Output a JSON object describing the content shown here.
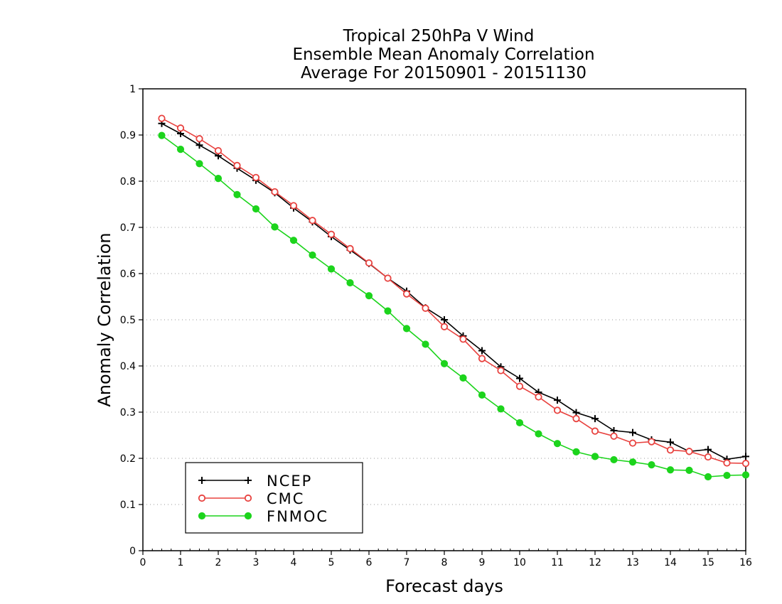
{
  "chart_data": {
    "type": "line",
    "title_lines": [
      "Tropical 250hPa V Wind",
      "Ensemble Mean Anomaly Correlation",
      "Average For 20150901 - 20151130"
    ],
    "xlabel": "Forecast days",
    "ylabel": "Anomaly Correlation",
    "xlim": [
      0,
      16
    ],
    "ylim": [
      0,
      1
    ],
    "x_ticks": [
      "0",
      "1",
      "2",
      "3",
      "4",
      "5",
      "6",
      "7",
      "8",
      "9",
      "10",
      "11",
      "12",
      "13",
      "14",
      "15",
      "16"
    ],
    "y_ticks": [
      "0",
      "0.1",
      "0.2",
      "0.3",
      "0.4",
      "0.5",
      "0.6",
      "0.7",
      "0.8",
      "0.9",
      "1"
    ],
    "grid": "horizontal dotted",
    "legend_position": "bottom-left",
    "x": [
      0.5,
      1,
      1.5,
      2,
      2.5,
      3,
      3.5,
      4,
      4.5,
      5,
      5.5,
      6,
      6.5,
      7,
      7.5,
      8,
      8.5,
      9,
      9.5,
      10,
      10.5,
      11,
      11.5,
      12,
      12.5,
      13,
      13.5,
      14,
      14.5,
      15,
      15.5,
      16
    ],
    "series": [
      {
        "name": "NCEP",
        "color": "#000000",
        "marker": "plus",
        "values": [
          0.925,
          0.903,
          0.878,
          0.855,
          0.828,
          0.802,
          0.775,
          0.742,
          0.712,
          0.68,
          0.651,
          0.622,
          0.59,
          0.562,
          0.526,
          0.5,
          0.465,
          0.433,
          0.398,
          0.373,
          0.343,
          0.326,
          0.299,
          0.286,
          0.26,
          0.256,
          0.24,
          0.235,
          0.215,
          0.219,
          0.198,
          0.204
        ]
      },
      {
        "name": "CMC",
        "color": "#e8423f",
        "marker": "open-circle",
        "values": [
          0.936,
          0.915,
          0.892,
          0.866,
          0.834,
          0.808,
          0.777,
          0.747,
          0.715,
          0.685,
          0.654,
          0.623,
          0.59,
          0.556,
          0.525,
          0.485,
          0.458,
          0.416,
          0.39,
          0.356,
          0.333,
          0.304,
          0.286,
          0.259,
          0.248,
          0.233,
          0.236,
          0.218,
          0.215,
          0.203,
          0.19,
          0.189
        ]
      },
      {
        "name": "FNMOC",
        "color": "#1cd41c",
        "marker": "filled-circle",
        "values": [
          0.899,
          0.869,
          0.838,
          0.806,
          0.771,
          0.74,
          0.701,
          0.672,
          0.64,
          0.61,
          0.58,
          0.552,
          0.519,
          0.481,
          0.447,
          0.405,
          0.374,
          0.337,
          0.307,
          0.277,
          0.253,
          0.232,
          0.214,
          0.204,
          0.197,
          0.192,
          0.186,
          0.175,
          0.174,
          0.16,
          0.163,
          0.164
        ]
      }
    ]
  }
}
